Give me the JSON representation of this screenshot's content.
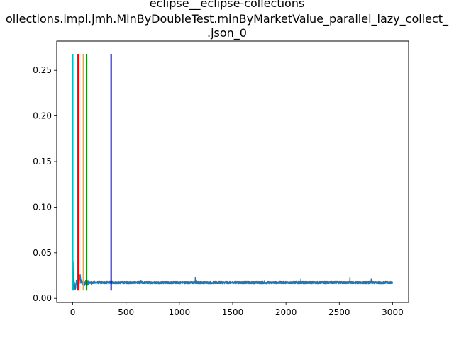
{
  "chart_data": {
    "type": "line",
    "title_lines": [
      "eclipse__eclipse-collections",
      "ollections.impl.jmh.MinByDoubleTest.minByMarketValue_parallel_lazy_collect_",
      ".json_0"
    ],
    "xlim": [
      -150,
      3150
    ],
    "ylim": [
      -0.0045,
      0.282
    ],
    "x_ticks": [
      0,
      500,
      1000,
      1500,
      2000,
      2500,
      3000
    ],
    "x_tick_labels": [
      "0",
      "500",
      "1000",
      "1500",
      "2000",
      "2500",
      "3000"
    ],
    "y_ticks": [
      0.0,
      0.05,
      0.1,
      0.15,
      0.2,
      0.25
    ],
    "y_tick_labels": [
      "0.00",
      "0.05",
      "0.10",
      "0.15",
      "0.20",
      "0.25"
    ],
    "grid": false,
    "series": [
      {
        "color": "#1f77b4",
        "n_points": 3000,
        "baseline": 0.0172,
        "noise": 0.0012,
        "points": [
          [
            0,
            0.025
          ],
          [
            3,
            0.04
          ],
          [
            6,
            0.016
          ],
          [
            10,
            0.009
          ],
          [
            15,
            0.018
          ],
          [
            20,
            0.012
          ],
          [
            25,
            0.01
          ],
          [
            30,
            0.016
          ],
          [
            35,
            0.018
          ],
          [
            40,
            0.015
          ],
          [
            45,
            0.01
          ],
          [
            50,
            0.017
          ],
          [
            55,
            0.022
          ],
          [
            60,
            0.016
          ],
          [
            65,
            0.024
          ],
          [
            70,
            0.026
          ],
          [
            75,
            0.018
          ],
          [
            80,
            0.02
          ],
          [
            90,
            0.016
          ],
          [
            100,
            0.019
          ],
          [
            110,
            0.014
          ],
          [
            120,
            0.018
          ],
          [
            135,
            0.016
          ],
          [
            150,
            0.018
          ],
          [
            175,
            0.015
          ],
          [
            200,
            0.019
          ],
          [
            300,
            0.017
          ],
          [
            400,
            0.016
          ],
          [
            500,
            0.018
          ],
          [
            640,
            0.019
          ],
          [
            800,
            0.017
          ],
          [
            1000,
            0.016
          ],
          [
            1150,
            0.023
          ],
          [
            1160,
            0.02
          ],
          [
            1400,
            0.018
          ],
          [
            1800,
            0.019
          ],
          [
            2000,
            0.017
          ],
          [
            2140,
            0.021
          ],
          [
            2400,
            0.018
          ],
          [
            2600,
            0.023
          ],
          [
            2800,
            0.021
          ],
          [
            2820,
            0.018
          ],
          [
            3000,
            0.017
          ]
        ]
      }
    ],
    "vlines": [
      {
        "x": 0,
        "ymin": 0.0085,
        "ymax": 0.268,
        "color": "#00bfbf"
      },
      {
        "x": 50,
        "ymin": 0.0085,
        "ymax": 0.268,
        "color": "#ff0000"
      },
      {
        "x": 100,
        "ymin": 0.0085,
        "ymax": 0.268,
        "color": "#ffa500"
      },
      {
        "x": 130,
        "ymin": 0.0085,
        "ymax": 0.268,
        "color": "#008000"
      },
      {
        "x": 360,
        "ymin": 0.0085,
        "ymax": 0.268,
        "color": "#0000ff"
      }
    ]
  }
}
